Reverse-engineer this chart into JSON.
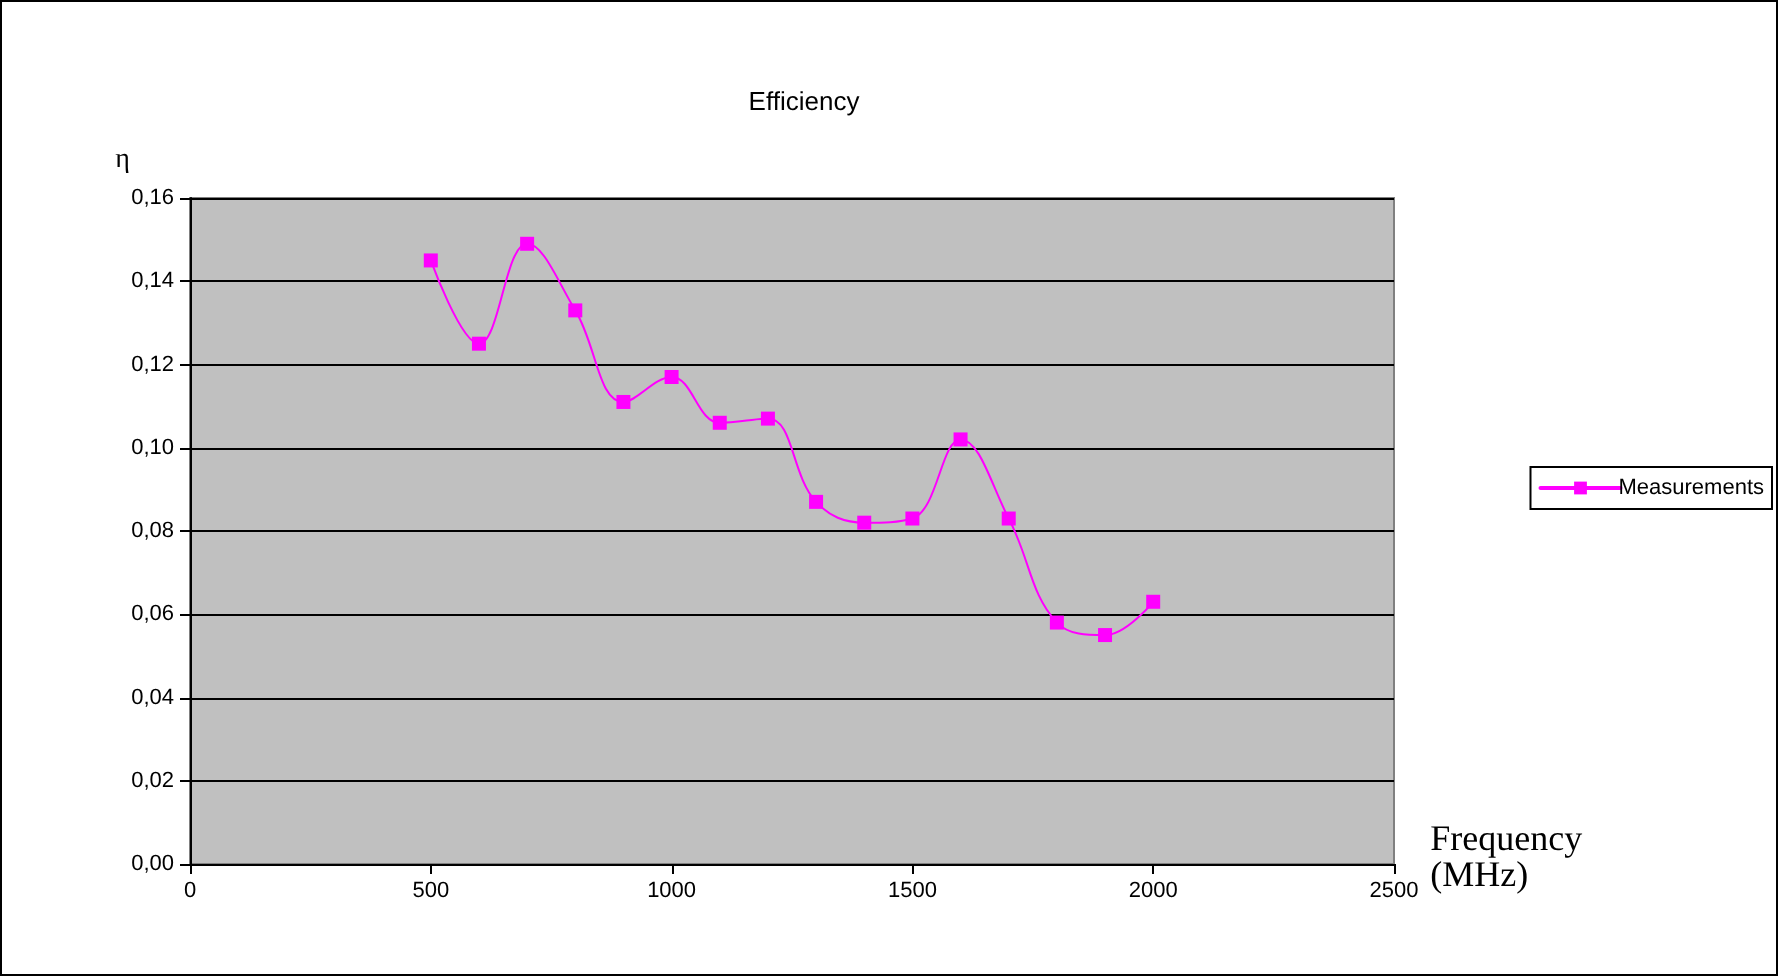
{
  "chart_data": {
    "type": "line",
    "title": "Efficiency",
    "xlabel": "Frequency\n(MHz)",
    "ylabel": "η",
    "x": [
      500,
      600,
      700,
      800,
      900,
      1000,
      1100,
      1200,
      1300,
      1400,
      1500,
      1600,
      1700,
      1800,
      1900,
      2000
    ],
    "series": [
      {
        "name": "Measurements",
        "color": "#ff00ff",
        "values": [
          0.145,
          0.125,
          0.149,
          0.133,
          0.111,
          0.117,
          0.106,
          0.107,
          0.087,
          0.082,
          0.083,
          0.102,
          0.083,
          0.058,
          0.055,
          0.063
        ]
      }
    ],
    "xlim": [
      0,
      2500
    ],
    "xticks": [
      0,
      500,
      1000,
      1500,
      2000,
      2500
    ],
    "ylim": [
      0,
      0.16
    ],
    "yticks": [
      {
        "value": 0,
        "label": "0,00"
      },
      {
        "value": 0.02,
        "label": "0,02"
      },
      {
        "value": 0.04,
        "label": "0,04"
      },
      {
        "value": 0.06,
        "label": "0,06"
      },
      {
        "value": 0.08,
        "label": "0,08"
      },
      {
        "value": 0.1,
        "label": "0,10"
      },
      {
        "value": 0.12,
        "label": "0,12"
      },
      {
        "value": 0.14,
        "label": "0,14"
      },
      {
        "value": 0.16,
        "label": "0,16"
      }
    ],
    "grid": "y",
    "legend": "right",
    "marker": "square",
    "line_style": "solid"
  }
}
